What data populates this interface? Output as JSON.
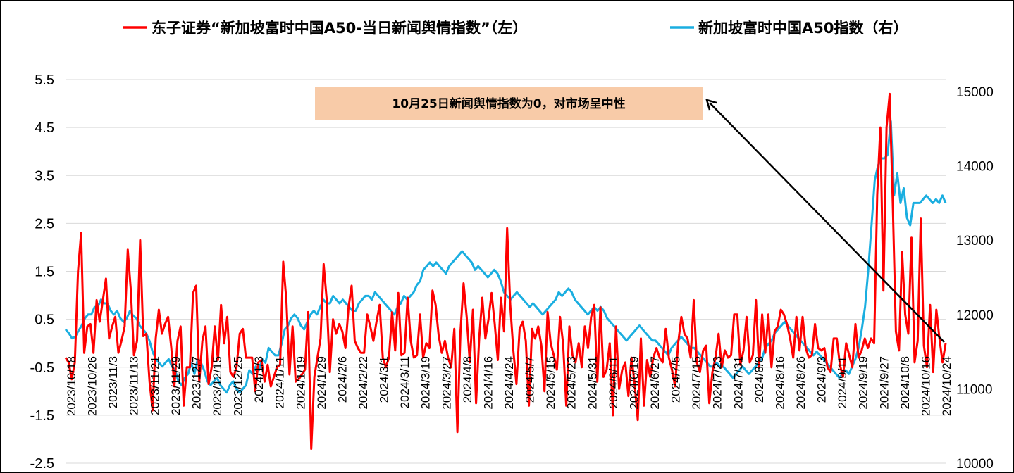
{
  "chart_data": {
    "type": "line",
    "legend_position": "top",
    "grid": true,
    "y_left": {
      "ticks": [
        "5.5",
        "4.5",
        "3.5",
        "2.5",
        "1.5",
        "0.5",
        "-0.5",
        "-1.5",
        "-2.5"
      ],
      "range": [
        -2.5,
        5.5
      ]
    },
    "y_right": {
      "ticks": [
        "15000",
        "14000",
        "13000",
        "12000",
        "11000",
        "10000"
      ],
      "range": [
        10000,
        15000
      ]
    },
    "x_ticks": [
      "2023/10/18",
      "2023/10/26",
      "2023/11/3",
      "2023/11/13",
      "2023/11/21",
      "2023/11/29",
      "2023/12/7",
      "2023/12/15",
      "2023/12/25",
      "2024/1/3",
      "2024/1/11",
      "2024/1/19",
      "2024/1/29",
      "2024/2/6",
      "2024/2/22",
      "2024/3/1",
      "2024/3/11",
      "2024/3/19",
      "2024/3/27",
      "2024/4/8",
      "2024/4/16",
      "2024/4/24",
      "2024/5/7",
      "2024/5/15",
      "2024/5/23",
      "2024/5/31",
      "2024/6/11",
      "2024/6/19",
      "2024/6/27",
      "2024/7/5",
      "2024/7/15",
      "2024/7/23",
      "2024/7/31",
      "2024/8/8",
      "2024/8/16",
      "2024/8/26",
      "2024/9/3",
      "2024/9/11",
      "2024/9/19",
      "2024/9/27",
      "2024/10/8",
      "2024/10/16",
      "2024/10/24"
    ],
    "annotation": "10月25日新闻舆情指数为0，对市场呈中性",
    "series": [
      {
        "name": "东子证券“新加坡富时中国A50-当日新闻舆情指数”（左）",
        "axis": "left",
        "color": "#ff0000",
        "values": [
          -0.3,
          -0.4,
          -0.75,
          -0.4,
          1.5,
          2.3,
          -0.2,
          0.35,
          0.4,
          -0.2,
          0.9,
          0.45,
          0.9,
          1.35,
          0.1,
          0.35,
          0.55,
          -0.2,
          0.05,
          0.35,
          1.95,
          1.1,
          -0.25,
          0.05,
          2.15,
          0.15,
          0.2,
          -0.8,
          -1.4,
          0.1,
          0.7,
          0.2,
          0.4,
          0.55,
          -0.1,
          -0.9,
          0.05,
          0.35,
          -1.3,
          -0.5,
          -0.5,
          1.05,
          1.2,
          -0.8,
          0.05,
          0.35,
          -0.85,
          -0.5,
          0.35,
          -0.35,
          0.8,
          0.0,
          0.55,
          -0.6,
          -0.7,
          -0.5,
          0.2,
          0.3,
          -0.3,
          -0.3,
          -0.3,
          -1.0,
          -0.4,
          -0.35,
          -0.8,
          -0.45,
          -0.9,
          -0.7,
          -0.5,
          -0.45,
          1.7,
          0.9,
          -0.65,
          0.35,
          -0.8,
          -0.75,
          -0.65,
          -0.55,
          0.65,
          -2.2,
          -0.7,
          -0.3,
          0.1,
          1.65,
          0.9,
          -0.6,
          0.5,
          0.2,
          0.4,
          0.25,
          -0.1,
          0.75,
          1.2,
          0.05,
          -0.1,
          -0.2,
          -0.2,
          0.6,
          0.35,
          0.05,
          0.45,
          0.8,
          -0.3,
          -0.5,
          -0.3,
          0.65,
          -0.15,
          1.05,
          -0.25,
          -0.2,
          0.95,
          0.05,
          -0.3,
          -0.25,
          0.6,
          -0.3,
          0.0,
          -0.1,
          1.1,
          0.8,
          0.15,
          -0.2,
          0.05,
          -0.3,
          -0.5,
          0.3,
          -1.85,
          0.25,
          1.25,
          0.55,
          -0.4,
          0.7,
          -1.25,
          0.1,
          0.95,
          0.1,
          0.5,
          1.05,
          0.4,
          -0.35,
          0.95,
          0.25,
          2.4,
          0.8,
          -0.15,
          -0.85,
          0.3,
          0.45,
          0.05,
          -1.3,
          0.3,
          0.1,
          0.35,
          -0.05,
          -1.0,
          0.65,
          0.0,
          -0.25,
          -0.55,
          0.55,
          0.0,
          -1.3,
          0.35,
          -0.25,
          -0.4,
          0.0,
          -0.5,
          0.35,
          -0.1,
          0.55,
          0.8,
          -0.8,
          0.75,
          -0.7,
          -0.55,
          0.0,
          -1.5,
          0.35,
          -0.95,
          -0.55,
          -0.4,
          -1.1,
          -0.3,
          -0.85,
          -1.6,
          0.1,
          -1.3,
          -0.35,
          -0.7,
          -0.3,
          -0.1,
          -0.3,
          -0.4,
          0.3,
          -0.3,
          -0.55,
          -0.9,
          0.0,
          0.55,
          0.2,
          0.1,
          -0.3,
          0.9,
          -0.4,
          -0.6,
          -0.15,
          -0.05,
          -1.25,
          -0.6,
          -0.3,
          0.2,
          -0.5,
          -0.15,
          -0.3,
          -0.25,
          0.6,
          0.6,
          -0.45,
          -0.15,
          0.55,
          -0.4,
          -0.25,
          0.9,
          -0.5,
          0.6,
          -0.2,
          0.6,
          -0.5,
          0.25,
          0.35,
          0.7,
          0.6,
          0.4,
          0.1,
          -0.3,
          0.55,
          -0.15,
          0.55,
          -0.1,
          -0.3,
          -0.25,
          0.4,
          -0.1,
          -0.15,
          -0.1,
          -0.5,
          -0.6,
          0.1,
          0.1,
          -0.45,
          -0.7,
          0.0,
          -0.25,
          -0.5,
          0.4,
          -0.3,
          -0.15,
          0.1,
          -0.1,
          0.1,
          0.0,
          3.1,
          4.5,
          1.1,
          4.5,
          5.2,
          2.9,
          0.25,
          -0.15,
          1.9,
          0.6,
          0.2,
          2.2,
          -0.4,
          0.05,
          2.6,
          -0.05,
          -0.5,
          0.8,
          -0.6,
          0.7,
          0.1,
          -0.4,
          0.0
        ]
      },
      {
        "name": "新加坡富时中国A50指数（右）",
        "axis": "right",
        "color": "#1aaee0",
        "values": [
          11800,
          11750,
          11680,
          11700,
          11780,
          11850,
          11950,
          12000,
          12000,
          12100,
          12100,
          12200,
          12150,
          12150,
          12050,
          12000,
          12050,
          11950,
          11900,
          11950,
          12050,
          11980,
          11950,
          11850,
          11800,
          11750,
          11650,
          11500,
          11400,
          11350,
          11300,
          11350,
          11400,
          11300,
          11250,
          11100,
          11050,
          11150,
          11200,
          11350,
          11200,
          11400,
          11350,
          11250,
          11100,
          11050,
          11100,
          11150,
          11050,
          11000,
          10950,
          11050,
          11100,
          11000,
          10950,
          11000,
          11050,
          11250,
          11200,
          11300,
          11250,
          11400,
          11350,
          11550,
          11500,
          11450,
          11450,
          11600,
          11800,
          11850,
          11950,
          12000,
          11950,
          11850,
          11800,
          11900,
          12000,
          12050,
          12000,
          12100,
          12200,
          12150,
          12150,
          12250,
          12200,
          12150,
          12200,
          12150,
          12100,
          12050,
          12050,
          12150,
          12200,
          12250,
          12250,
          12200,
          12300,
          12250,
          12200,
          12150,
          12100,
          12050,
          12000,
          12100,
          12150,
          12250,
          12200,
          12250,
          12300,
          12400,
          12450,
          12600,
          12650,
          12700,
          12650,
          12700,
          12650,
          12600,
          12550,
          12650,
          12700,
          12750,
          12800,
          12850,
          12800,
          12750,
          12700,
          12600,
          12650,
          12600,
          12550,
          12500,
          12550,
          12600,
          12550,
          12450,
          12300,
          12250,
          12200,
          12250,
          12300,
          12250,
          12200,
          12150,
          12100,
          12150,
          12100,
          12050,
          12000,
          12050,
          12100,
          12150,
          12200,
          12300,
          12250,
          12300,
          12350,
          12300,
          12200,
          12150,
          12100,
          12050,
          12000,
          12050,
          12100,
          12050,
          12100,
          12050,
          11950,
          11900,
          11850,
          11800,
          11750,
          11700,
          11650,
          11700,
          11750,
          11800,
          11850,
          11800,
          11750,
          11700,
          11650,
          11650,
          11600,
          11550,
          11500,
          11450,
          11550,
          11600,
          11650,
          11700,
          11650,
          11600,
          11550,
          11550,
          11500,
          11450,
          11400,
          11350,
          11300,
          11300,
          11350,
          11300,
          11300,
          11250,
          11200,
          11150,
          11200,
          11250,
          11300,
          11250,
          11200,
          11250,
          11300,
          11350,
          11400,
          11550,
          11600,
          11650,
          11750,
          11800,
          11850,
          11900,
          11850,
          11800,
          11750,
          11700,
          11650,
          11600,
          11550,
          11500,
          11450,
          11500,
          11450,
          11400,
          11350,
          11300,
          11250,
          11200,
          11150,
          11200,
          11250,
          11200,
          11300,
          11400,
          11550,
          11800,
          12100,
          12600,
          13200,
          13800,
          14000,
          14100,
          14100,
          14150,
          14600,
          13600,
          13900,
          13500,
          13700,
          13300,
          13200,
          13500,
          13500,
          13500,
          13550,
          13600,
          13550,
          13500,
          13550,
          13500,
          13600,
          13500
        ]
      }
    ]
  }
}
